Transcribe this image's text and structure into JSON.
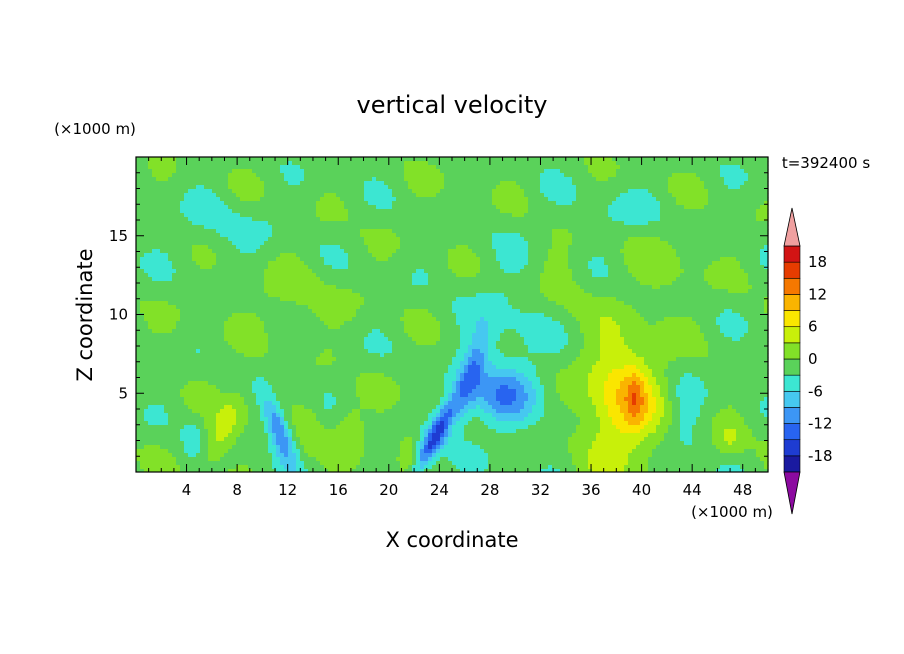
{
  "chart_data": {
    "type": "heatmap",
    "title": "vertical velocity",
    "xlabel": "X coordinate",
    "ylabel": "Z coordinate",
    "x_unit": "(×1000 m)",
    "y_unit": "(×1000 m)",
    "time_label": "t=392400 s",
    "xlim": [
      0,
      50
    ],
    "ylim": [
      0,
      20
    ],
    "x_ticks": [
      4,
      8,
      12,
      16,
      20,
      24,
      28,
      32,
      36,
      40,
      44,
      48
    ],
    "y_ticks": [
      5,
      10,
      15
    ],
    "colorbar": {
      "levels": [
        -21,
        -18,
        -15,
        -12,
        -9,
        -6,
        -3,
        0,
        3,
        6,
        9,
        12,
        15,
        18,
        21
      ],
      "tick_labels": [
        "18",
        "12",
        "6",
        "0",
        "-6",
        "-12",
        "-18"
      ],
      "tick_values": [
        18,
        12,
        6,
        0,
        -6,
        -12,
        -18
      ],
      "colors": [
        "#5a0096",
        "#1a1aa0",
        "#1e3cd2",
        "#2864f0",
        "#3c96f5",
        "#46c8f0",
        "#3ce6d2",
        "#5ad25a",
        "#82e128",
        "#c8f00a",
        "#fae600",
        "#fab400",
        "#f57800",
        "#e63c00",
        "#d21414",
        "#b40a0a"
      ],
      "under_color": "#8c0aa0",
      "over_color": "#f0a0a0"
    },
    "features": [
      {
        "x": 7.0,
        "z": 2.8,
        "peak": 6,
        "sx": 0.9,
        "sz": 1.6,
        "tilt": 0.5
      },
      {
        "x": 11.3,
        "z": 2.6,
        "peak": -12,
        "sx": 0.6,
        "sz": 1.4,
        "tilt": -0.4
      },
      {
        "x": 13.8,
        "z": 2.6,
        "peak": 3,
        "sx": 0.7,
        "sz": 1.2,
        "tilt": 0
      },
      {
        "x": 16.8,
        "z": 2.8,
        "peak": 4,
        "sx": 0.9,
        "sz": 1.3,
        "tilt": 0
      },
      {
        "x": 23.8,
        "z": 2.4,
        "peak": -15,
        "sx": 0.6,
        "sz": 1.8,
        "tilt": 0.6
      },
      {
        "x": 26.5,
        "z": 6.0,
        "peak": -9,
        "sx": 0.7,
        "sz": 2.0,
        "tilt": 0.3
      },
      {
        "x": 29.0,
        "z": 4.8,
        "peak": -7,
        "sx": 1.8,
        "sz": 1.2,
        "tilt": 0
      },
      {
        "x": 29.5,
        "z": 7.5,
        "peak": -3,
        "sx": 2.6,
        "sz": 4.0,
        "tilt": 0
      },
      {
        "x": 38.5,
        "z": 4.5,
        "peak": 10,
        "sx": 2.2,
        "sz": 3.0,
        "tilt": 0
      },
      {
        "x": 39.5,
        "z": 4.8,
        "peak": 5,
        "sx": 0.5,
        "sz": 1.2,
        "tilt": 0
      },
      {
        "x": 43.5,
        "z": 3.0,
        "peak": -3,
        "sx": 1.0,
        "sz": 2.0,
        "tilt": 0
      },
      {
        "x": 47.0,
        "z": 2.0,
        "peak": 4,
        "sx": 0.8,
        "sz": 0.9,
        "tilt": 0
      },
      {
        "x": 4.5,
        "z": 2.0,
        "peak": -3,
        "sx": 0.6,
        "sz": 1.0,
        "tilt": 0
      },
      {
        "x": 21.5,
        "z": 1.5,
        "peak": 4,
        "sx": 0.5,
        "sz": 0.8,
        "tilt": 0
      },
      {
        "x": 33.5,
        "z": 12.0,
        "peak": 2,
        "sx": 1.5,
        "sz": 2.0,
        "tilt": 0
      },
      {
        "x": 12.5,
        "z": 11.0,
        "peak": 2,
        "sx": 3.0,
        "sz": 1.5,
        "tilt": 0
      },
      {
        "x": 42.0,
        "z": 13.0,
        "peak": 2,
        "sx": 2.0,
        "sz": 1.8,
        "tilt": 0
      },
      {
        "x": 7.0,
        "z": 15.5,
        "peak": -2,
        "sx": 3.0,
        "sz": 1.5,
        "tilt": 0
      },
      {
        "x": 38.0,
        "z": 16.5,
        "peak": -2,
        "sx": 3.0,
        "sz": 1.2,
        "tilt": 0
      }
    ]
  }
}
